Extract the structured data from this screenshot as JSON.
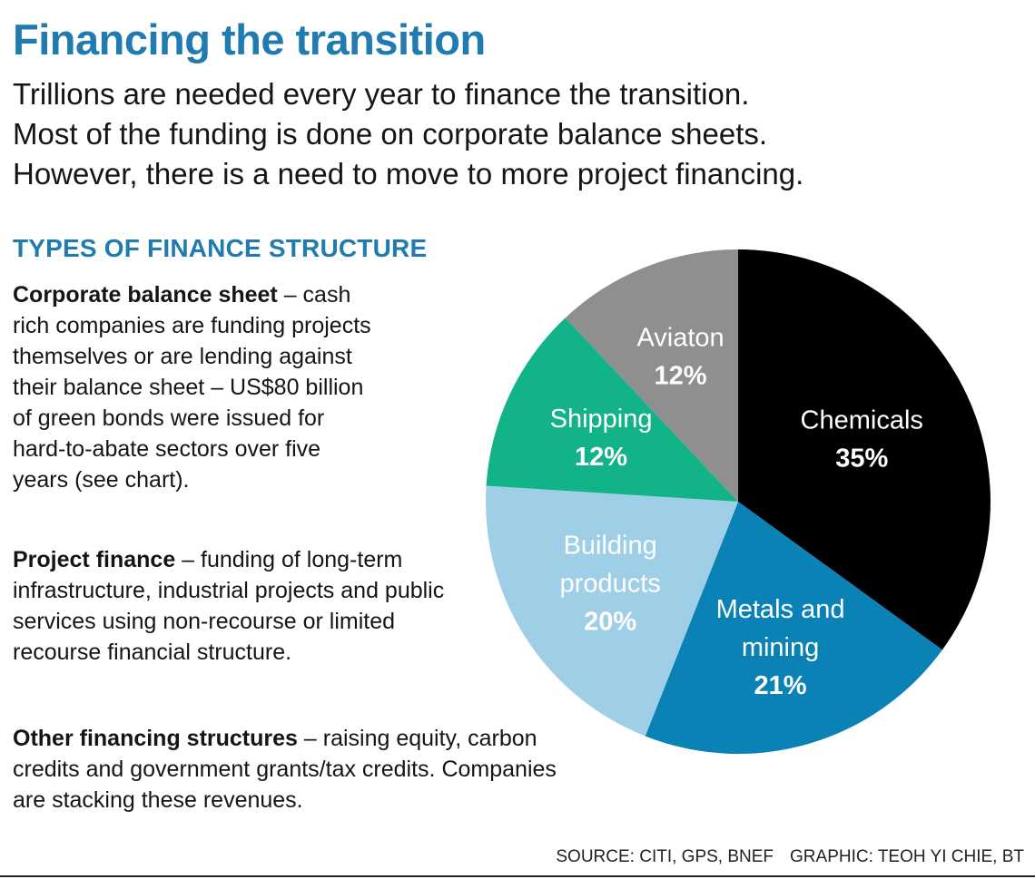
{
  "header": {
    "title": "Financing the transition",
    "subtitle_lines": [
      "Trillions are needed every year to finance the transition.",
      "Most of the funding is done on corporate balance sheets.",
      "However, there is a need to move to more project financing."
    ]
  },
  "types": {
    "heading": "TYPES OF FINANCE STRUCTURE",
    "items": [
      {
        "term": "Corporate balance sheet",
        "text": " – cash rich companies are funding projects themselves or are lending against their balance sheet – US$80 billion of green bonds were issued for hard-to-abate sectors over five years (see chart)."
      },
      {
        "term": "Project finance",
        "text": " – funding of long-term infrastructure, industrial projects and public services using non-recourse or limited recourse financial structure."
      },
      {
        "term": "Other financing structures",
        "text": " – raising equity, carbon credits and government grants/tax credits. Companies are stacking these revenues."
      }
    ]
  },
  "footer": {
    "source": "SOURCE: CITI, GPS, BNEF",
    "graphic": "GRAPHIC: TEOH YI CHIE, BT"
  },
  "chart_data": {
    "type": "pie",
    "title": "",
    "slices": [
      {
        "label_lines": [
          "Chemicals"
        ],
        "value": 35,
        "value_label": "35%",
        "color": "#000000",
        "text_color": "#ffffff"
      },
      {
        "label_lines": [
          "Metals and",
          "mining"
        ],
        "value": 21,
        "value_label": "21%",
        "color": "#0a82b5",
        "text_color": "#ffffff"
      },
      {
        "label_lines": [
          "Building",
          "products"
        ],
        "value": 20,
        "value_label": "20%",
        "color": "#9fcfe7",
        "text_color": "#ffffff"
      },
      {
        "label_lines": [
          "Shipping"
        ],
        "value": 12,
        "value_label": "12%",
        "color": "#12b388",
        "text_color": "#ffffff"
      },
      {
        "label_lines": [
          "Aviaton"
        ],
        "value": 12,
        "value_label": "12%",
        "color": "#8f8f8f",
        "text_color": "#ffffff"
      }
    ]
  }
}
